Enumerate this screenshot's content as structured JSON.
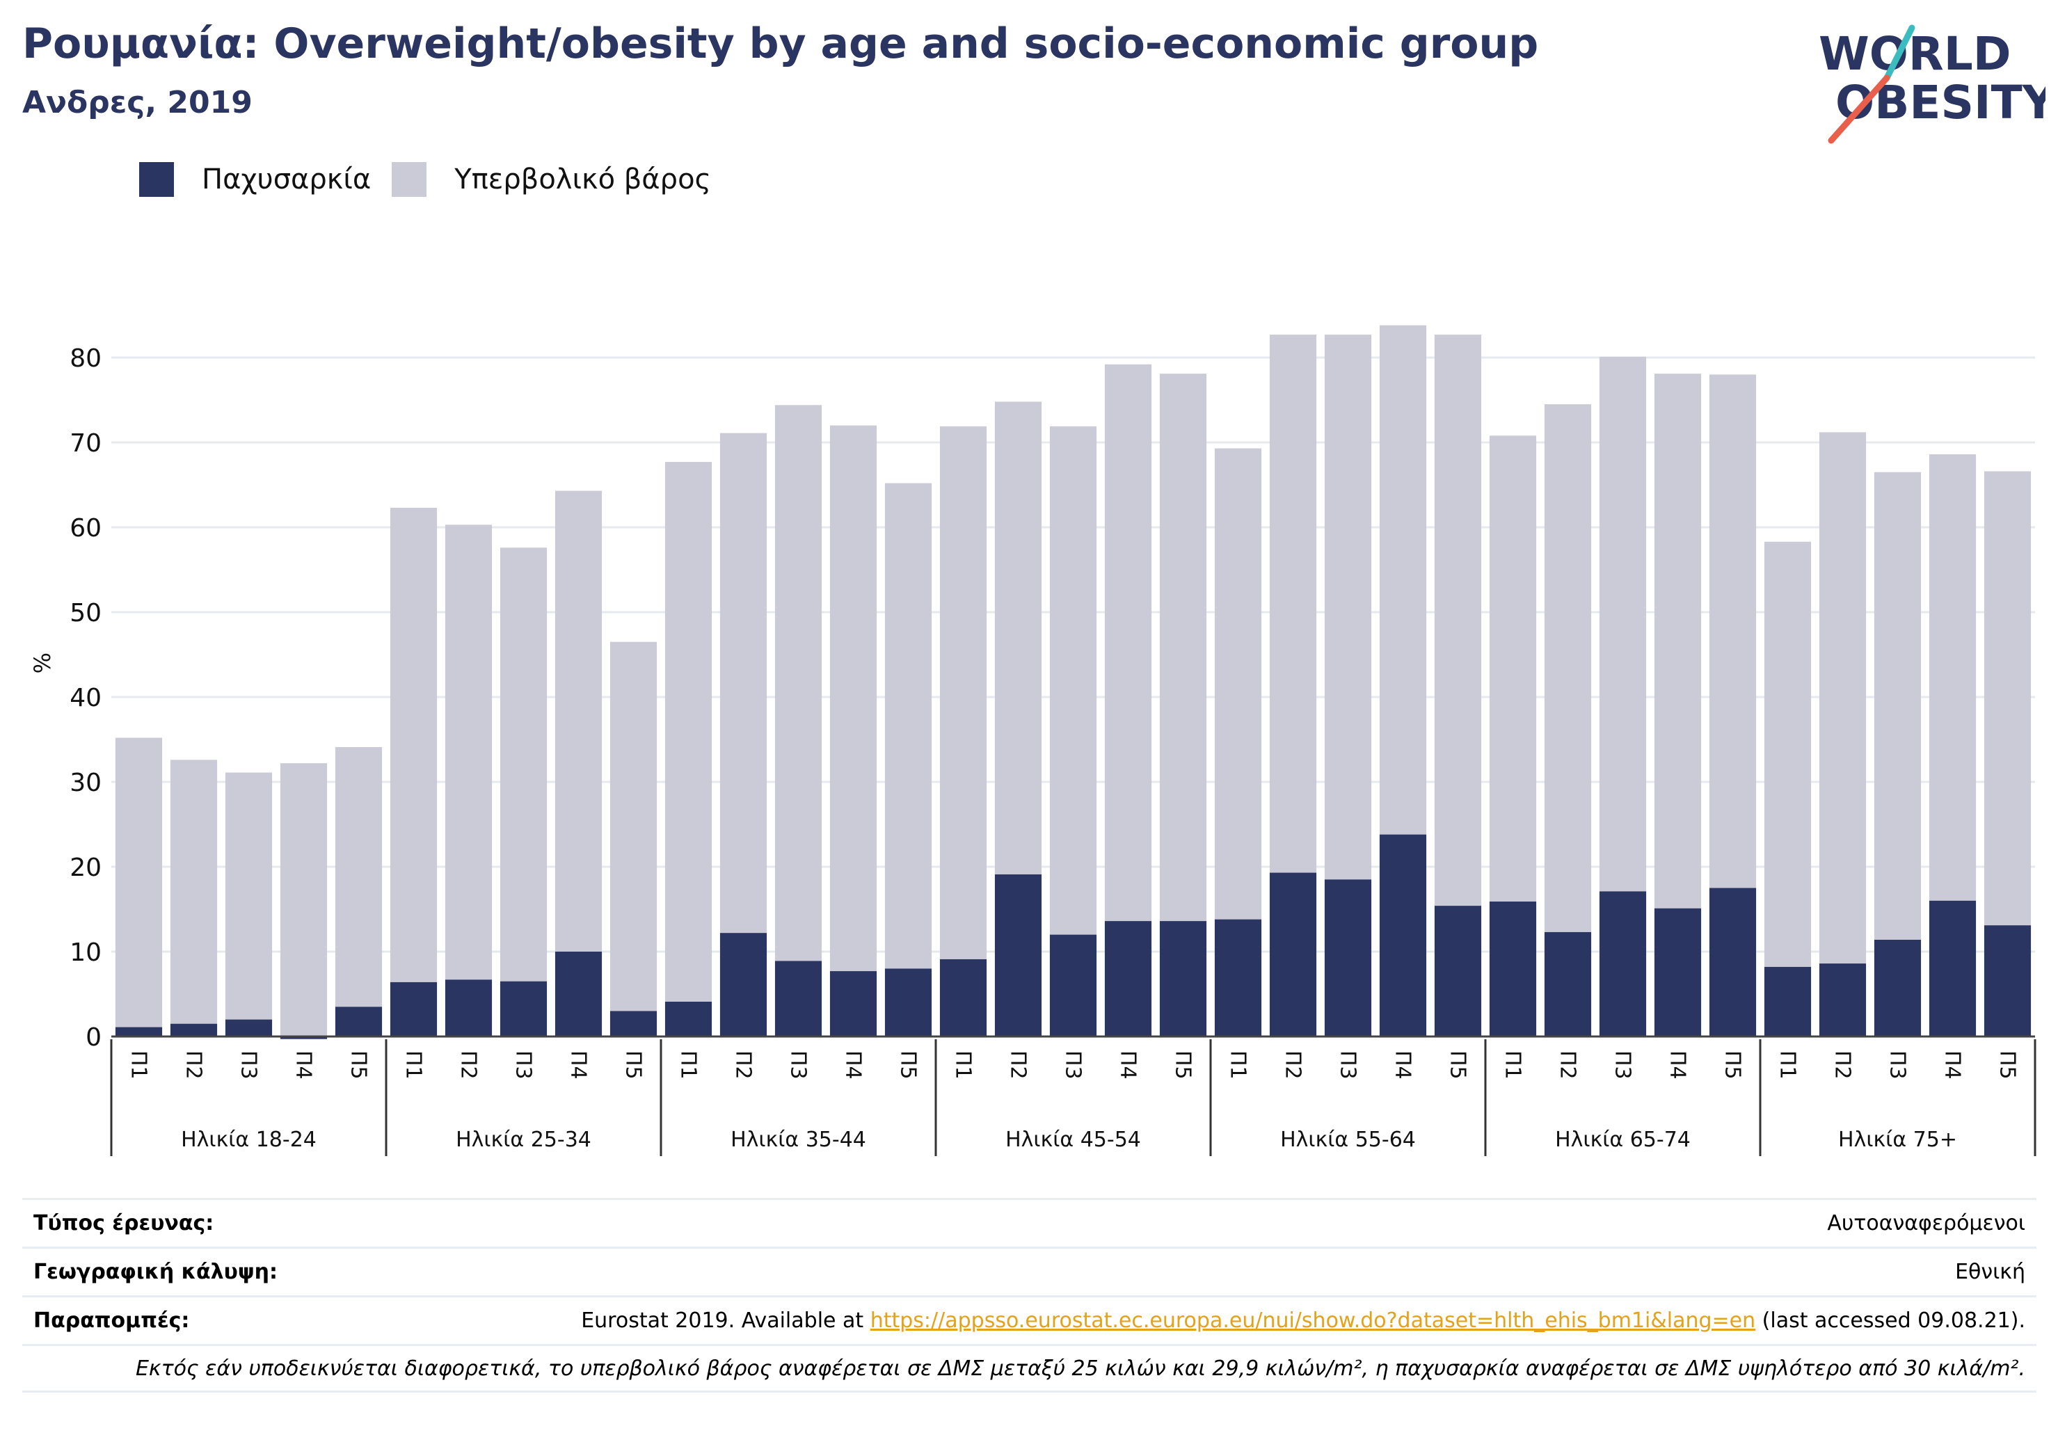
{
  "header": {
    "title": "Ρουμανία: Overweight/obesity by age and socio-economic group",
    "subtitle": "Ανδρες, 2019"
  },
  "logo": {
    "line1": "WORLD",
    "line2": "OBESITY"
  },
  "chart_data": {
    "type": "bar",
    "stacked": true,
    "ylabel": "%",
    "ylim": [
      0,
      90
    ],
    "yticks": [
      0,
      10,
      20,
      30,
      40,
      50,
      60,
      70,
      80
    ],
    "grid": true,
    "legend_position": "top-left",
    "groups": [
      "Ηλικία 18-24",
      "Ηλικία 25-34",
      "Ηλικία 35-44",
      "Ηλικία 45-54",
      "Ηλικία 55-64",
      "Ηλικία 65-74",
      "Ηλικία 75+"
    ],
    "categories": [
      "Π1",
      "Π2",
      "Π3",
      "Π4",
      "Π5"
    ],
    "series": [
      {
        "name": "Παχυσαρκία",
        "color": "#2a3562",
        "values": [
          [
            1.1,
            1.5,
            2.0,
            -0.3,
            3.5
          ],
          [
            6.4,
            6.7,
            6.5,
            10.0,
            3.0
          ],
          [
            4.1,
            12.2,
            8.9,
            7.7,
            8.0
          ],
          [
            9.1,
            19.1,
            12.0,
            13.6,
            13.6
          ],
          [
            13.8,
            19.3,
            18.5,
            23.8,
            15.4
          ],
          [
            15.9,
            12.3,
            17.1,
            15.1,
            17.5
          ],
          [
            8.2,
            8.6,
            11.4,
            16.0,
            13.1
          ]
        ]
      },
      {
        "name": "Υπερβολικό βάρος",
        "color": "#cacbd7",
        "values": [
          [
            34.1,
            31.1,
            29.1,
            32.2,
            30.6
          ],
          [
            55.9,
            53.6,
            51.1,
            54.3,
            43.5
          ],
          [
            63.6,
            58.9,
            65.5,
            64.3,
            57.2
          ],
          [
            62.8,
            55.7,
            59.9,
            65.6,
            64.5
          ],
          [
            55.5,
            63.4,
            64.2,
            60.0,
            67.3
          ],
          [
            54.9,
            62.2,
            63.0,
            63.0,
            60.5
          ],
          [
            50.1,
            62.6,
            55.1,
            52.6,
            53.5
          ]
        ]
      }
    ]
  },
  "info": {
    "survey_type": {
      "label": "Τύπος έρευνας:",
      "value": "Αυτοαναφερόμενοι"
    },
    "coverage": {
      "label": "Γεωγραφική κάλυψη:",
      "value": "Εθνική"
    },
    "references": {
      "label": "Παραπομπές:",
      "prefix": "Eurostat 2019. Available at ",
      "link": "https://appsso.eurostat.ec.europa.eu/nui/show.do?dataset=hlth_ehis_bm1i&lang=en",
      "suffix": " (last accessed 09.08.21)."
    },
    "note": "Εκτός εάν υποδεικνύεται διαφορετικά, το υπερβολικό βάρος αναφέρεται σε ΔΜΣ μεταξύ 25 κιλών και 29,9 κιλών/m², η παχυσαρκία αναφέρεται σε ΔΜΣ υψηλότερο από 30 κιλά/m²."
  }
}
